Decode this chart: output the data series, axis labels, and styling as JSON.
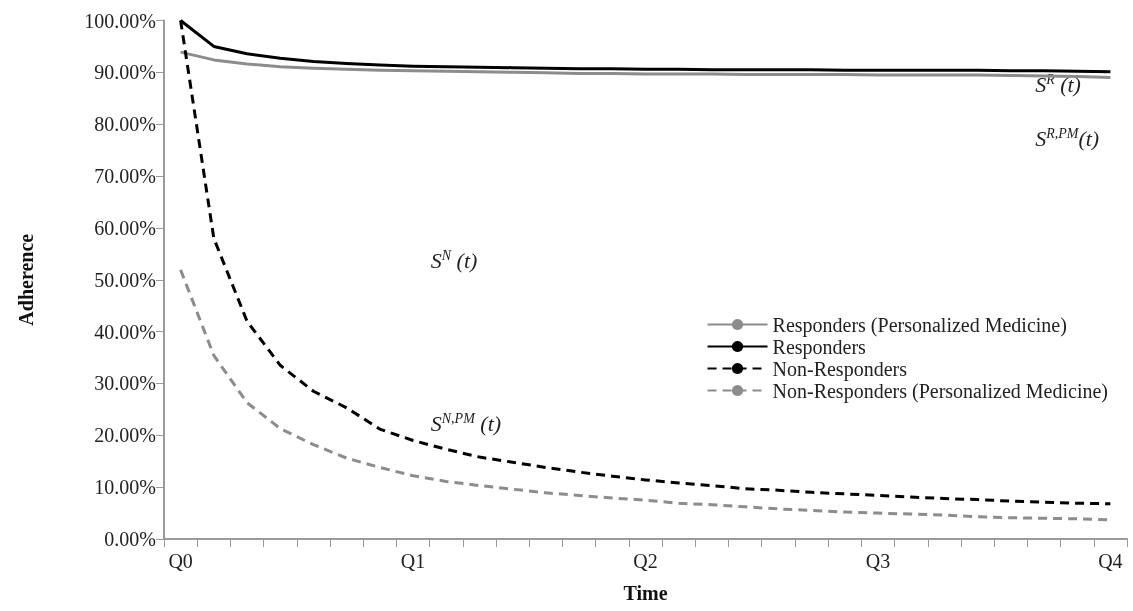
{
  "chart_data": {
    "type": "line",
    "xlabel": "Time",
    "ylabel": "Adherence",
    "categories": [
      "Q0",
      null,
      null,
      null,
      null,
      null,
      null,
      "Q1",
      null,
      null,
      null,
      null,
      null,
      null,
      "Q2",
      null,
      null,
      null,
      null,
      null,
      null,
      "Q3",
      null,
      null,
      null,
      null,
      null,
      null,
      "Q4"
    ],
    "ylim": [
      0,
      100
    ],
    "yticks": [
      {
        "value": 0,
        "label": "0.00%"
      },
      {
        "value": 10,
        "label": "10.00%"
      },
      {
        "value": 20,
        "label": "20.00%"
      },
      {
        "value": 30,
        "label": "30.00%"
      },
      {
        "value": 40,
        "label": "40.00%"
      },
      {
        "value": 50,
        "label": "50.00%"
      },
      {
        "value": 60,
        "label": "60.00%"
      },
      {
        "value": 70,
        "label": "70.00%"
      },
      {
        "value": 80,
        "label": "80.00%"
      },
      {
        "value": 90,
        "label": "90.00%"
      },
      {
        "value": 100,
        "label": "100.00%"
      }
    ],
    "grid": false,
    "legend": "right",
    "series": [
      {
        "name": "Responders (Personalized Medicine)",
        "color": "#8c8c8c",
        "line_style": "solid",
        "values": [
          93.9,
          92.4,
          91.6,
          91.1,
          90.8,
          90.6,
          90.4,
          90.3,
          90.2,
          90.1,
          90.0,
          89.9,
          89.8,
          89.8,
          89.7,
          89.7,
          89.7,
          89.6,
          89.6,
          89.6,
          89.6,
          89.5,
          89.5,
          89.5,
          89.5,
          89.4,
          89.3,
          89.2,
          89.0
        ]
      },
      {
        "name": "Responders",
        "color": "#000000",
        "line_style": "solid",
        "values": [
          100,
          95.0,
          93.6,
          92.7,
          92.1,
          91.7,
          91.4,
          91.2,
          91.1,
          91.0,
          90.9,
          90.8,
          90.7,
          90.7,
          90.6,
          90.6,
          90.5,
          90.5,
          90.5,
          90.5,
          90.4,
          90.4,
          90.4,
          90.4,
          90.4,
          90.3,
          90.3,
          90.2,
          90.1
        ]
      },
      {
        "name": "Non-Responders",
        "color": "#000000",
        "line_style": "dashed",
        "values": [
          100,
          58,
          42,
          33.5,
          28.5,
          25.3,
          21.2,
          19,
          17.3,
          15.8,
          14.8,
          13.8,
          12.9,
          12.1,
          11.4,
          10.8,
          10.3,
          9.7,
          9.4,
          9.0,
          8.7,
          8.4,
          8.1,
          7.8,
          7.6,
          7.3,
          7.1,
          6.9,
          6.8
        ]
      },
      {
        "name": "Non-Responders (Personalized Medicine)",
        "color": "#8c8c8c",
        "line_style": "dashed",
        "values": [
          51.9,
          35.4,
          26.3,
          21.3,
          18.2,
          15.6,
          13.8,
          12.2,
          11.1,
          10.3,
          9.6,
          8.9,
          8.4,
          7.9,
          7.5,
          6.9,
          6.6,
          6.2,
          5.8,
          5.5,
          5.2,
          5.0,
          4.8,
          4.6,
          4.3,
          4.1,
          4.0,
          3.9,
          3.7
        ]
      }
    ],
    "annotations": [
      "S$^{R}$ (t)",
      "S$^{R,PM}$(t)",
      "S$^{N}$ (t)",
      "S$^{N,PM}$ (t)"
    ]
  }
}
